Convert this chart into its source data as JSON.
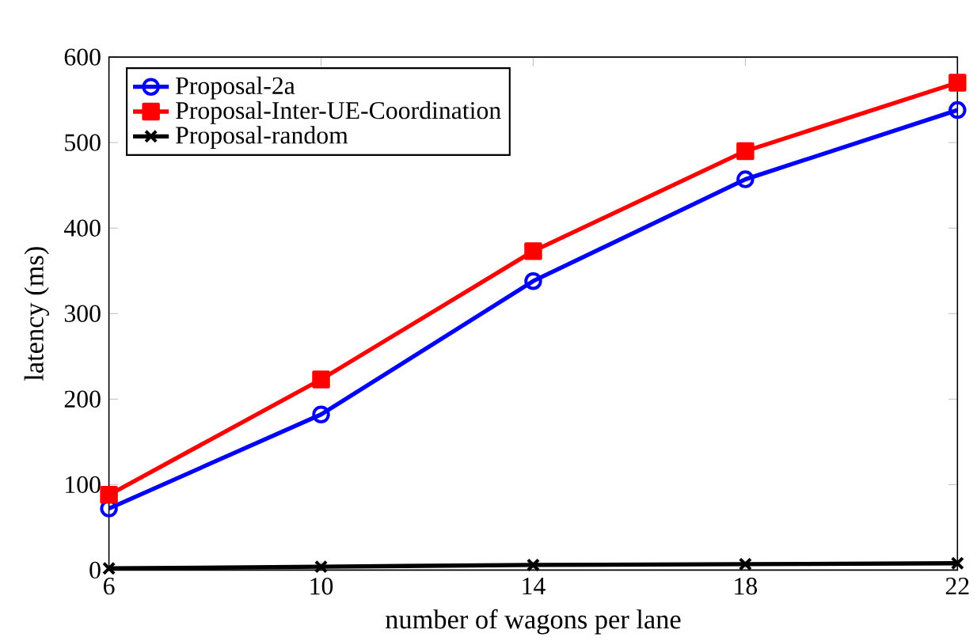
{
  "chart_data": {
    "type": "line",
    "xlabel": "number of wagons per lane",
    "ylabel": "latency (ms)",
    "x": [
      6,
      10,
      14,
      18,
      22
    ],
    "series": [
      {
        "name": "Proposal-2a",
        "color": "#0000ff",
        "marker": "circle",
        "values": [
          72,
          182,
          338,
          457,
          538
        ]
      },
      {
        "name": "Proposal-Inter-UE-Coordination",
        "color": "#ff0000",
        "marker": "square",
        "values": [
          88,
          223,
          373,
          490,
          570
        ]
      },
      {
        "name": "Proposal-random",
        "color": "#000000",
        "marker": "cross",
        "values": [
          2,
          4,
          6,
          7,
          8
        ]
      }
    ],
    "xlim": [
      6,
      22
    ],
    "xticks": [
      6,
      10,
      14,
      18,
      22
    ],
    "ylim": [
      0,
      600
    ],
    "yticks": [
      0,
      100,
      200,
      300,
      400,
      500,
      600
    ],
    "grid": false,
    "legend": "top left",
    "line_style": "solid"
  }
}
